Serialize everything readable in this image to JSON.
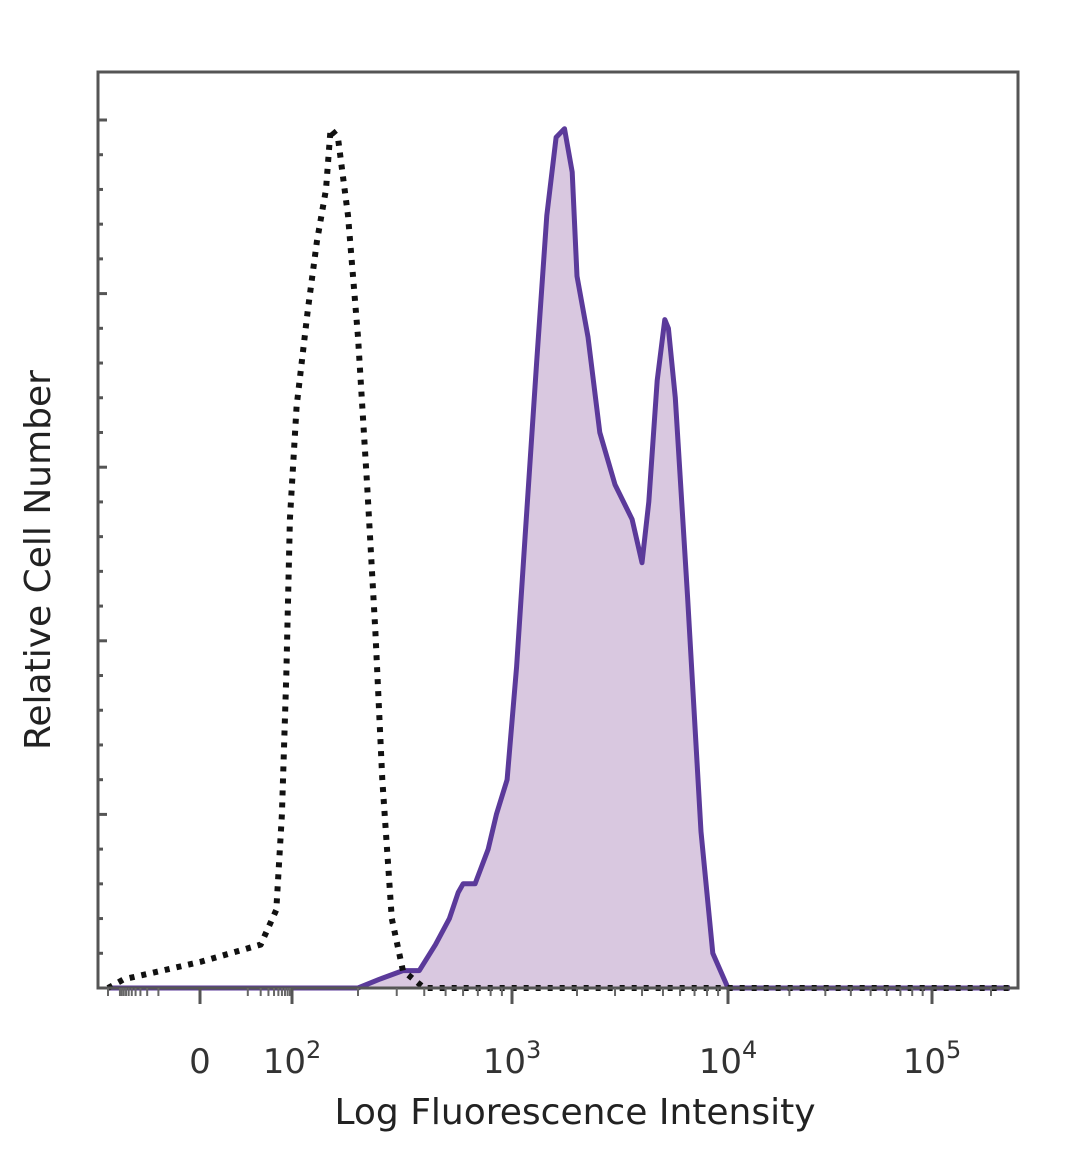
{
  "chart_data": {
    "type": "area",
    "title": "",
    "xlabel": "Log Fluorescence Intensity",
    "ylabel": "Relative Cell Number",
    "x_scale": "biexponential",
    "x_ticks": [
      {
        "value": 0,
        "base": "0",
        "exp": ""
      },
      {
        "value": 100,
        "base": "10",
        "exp": "2"
      },
      {
        "value": 1000,
        "base": "10",
        "exp": "3"
      },
      {
        "value": 10000,
        "base": "10",
        "exp": "4"
      },
      {
        "value": 100000,
        "base": "10",
        "exp": "5"
      }
    ],
    "ylim": [
      0,
      100
    ],
    "grid": false,
    "series": [
      {
        "style": "dotted",
        "color": "#111111",
        "fill": "none",
        "points": [
          [
            -200,
            0
          ],
          [
            -80,
            1
          ],
          [
            0,
            3
          ],
          [
            20,
            5
          ],
          [
            45,
            9
          ],
          [
            60,
            20
          ],
          [
            75,
            36
          ],
          [
            90,
            54
          ],
          [
            105,
            67
          ],
          [
            118,
            78
          ],
          [
            130,
            86
          ],
          [
            143,
            92
          ],
          [
            150,
            99
          ],
          [
            162,
            98
          ],
          [
            180,
            89
          ],
          [
            200,
            75
          ],
          [
            220,
            58
          ],
          [
            240,
            41
          ],
          [
            258,
            24
          ],
          [
            285,
            8
          ],
          [
            320,
            2
          ],
          [
            400,
            0
          ],
          [
            250000,
            0
          ]
        ]
      },
      {
        "style": "solid",
        "color": "#5b3a9a",
        "fill": "#d9c8e0",
        "points": [
          [
            -200,
            0
          ],
          [
            200,
            0
          ],
          [
            250,
            1
          ],
          [
            320,
            2
          ],
          [
            380,
            2
          ],
          [
            450,
            5
          ],
          [
            520,
            8
          ],
          [
            570,
            11
          ],
          [
            600,
            12
          ],
          [
            680,
            12
          ],
          [
            780,
            16
          ],
          [
            850,
            20
          ],
          [
            950,
            24
          ],
          [
            1050,
            37
          ],
          [
            1150,
            52
          ],
          [
            1300,
            72
          ],
          [
            1450,
            89
          ],
          [
            1600,
            98
          ],
          [
            1750,
            99
          ],
          [
            1900,
            94
          ],
          [
            2000,
            82
          ],
          [
            2250,
            75
          ],
          [
            2550,
            64
          ],
          [
            3000,
            58
          ],
          [
            3600,
            54
          ],
          [
            4000,
            49
          ],
          [
            4300,
            56
          ],
          [
            4700,
            70
          ],
          [
            5100,
            77
          ],
          [
            5300,
            76
          ],
          [
            5700,
            68
          ],
          [
            6500,
            45
          ],
          [
            7500,
            18
          ],
          [
            8500,
            4
          ],
          [
            10000,
            0
          ],
          [
            250000,
            0
          ]
        ]
      }
    ]
  }
}
